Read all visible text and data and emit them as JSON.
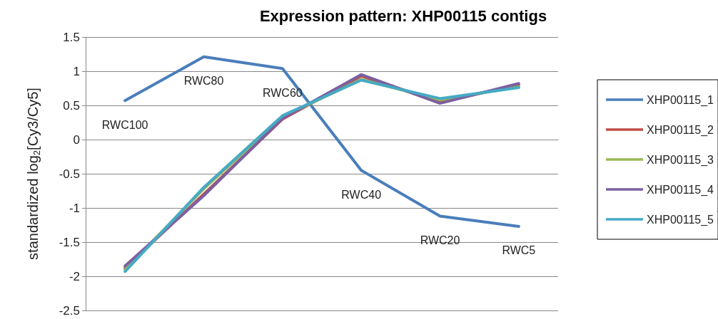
{
  "chart_data": {
    "type": "line",
    "title": "Expression pattern: XHP00115 contigs",
    "ylabel": "standardized log$_{2}$[Cy3/Cy5]",
    "categories": [
      null,
      null,
      null,
      null,
      null,
      null
    ],
    "series": [
      {
        "name": "XHP00115_1",
        "color": "#4a7ebb",
        "values": [
          0.57,
          1.21,
          1.04,
          -0.45,
          -1.12,
          -1.27
        ],
        "value_labels": [
          "RWC100",
          "RWC80",
          "RWC60",
          "RWC40",
          "RWC20",
          "RWC5"
        ]
      },
      {
        "name": "XHP00115_2",
        "color": "#be4b48",
        "values": [
          -1.88,
          -0.8,
          0.3,
          0.93,
          0.55,
          0.8
        ]
      },
      {
        "name": "XHP00115_3",
        "color": "#98b954",
        "values": [
          -1.9,
          -0.72,
          0.33,
          0.88,
          0.58,
          0.77
        ]
      },
      {
        "name": "XHP00115_4",
        "color": "#7d60a0",
        "values": [
          -1.85,
          -0.82,
          0.31,
          0.95,
          0.53,
          0.82
        ]
      },
      {
        "name": "XHP00115_5",
        "color": "#46aac5",
        "values": [
          -1.93,
          -0.7,
          0.35,
          0.87,
          0.6,
          0.76
        ]
      }
    ],
    "ylim": [
      -2.5,
      1.5
    ],
    "yticks": [
      -2.5,
      -2,
      -1.5,
      -1,
      -0.5,
      0,
      0.5,
      1,
      1.5
    ],
    "grid": "y",
    "legend": "right",
    "marker": "none",
    "line_style": "solid",
    "tick_labels": "y"
  }
}
